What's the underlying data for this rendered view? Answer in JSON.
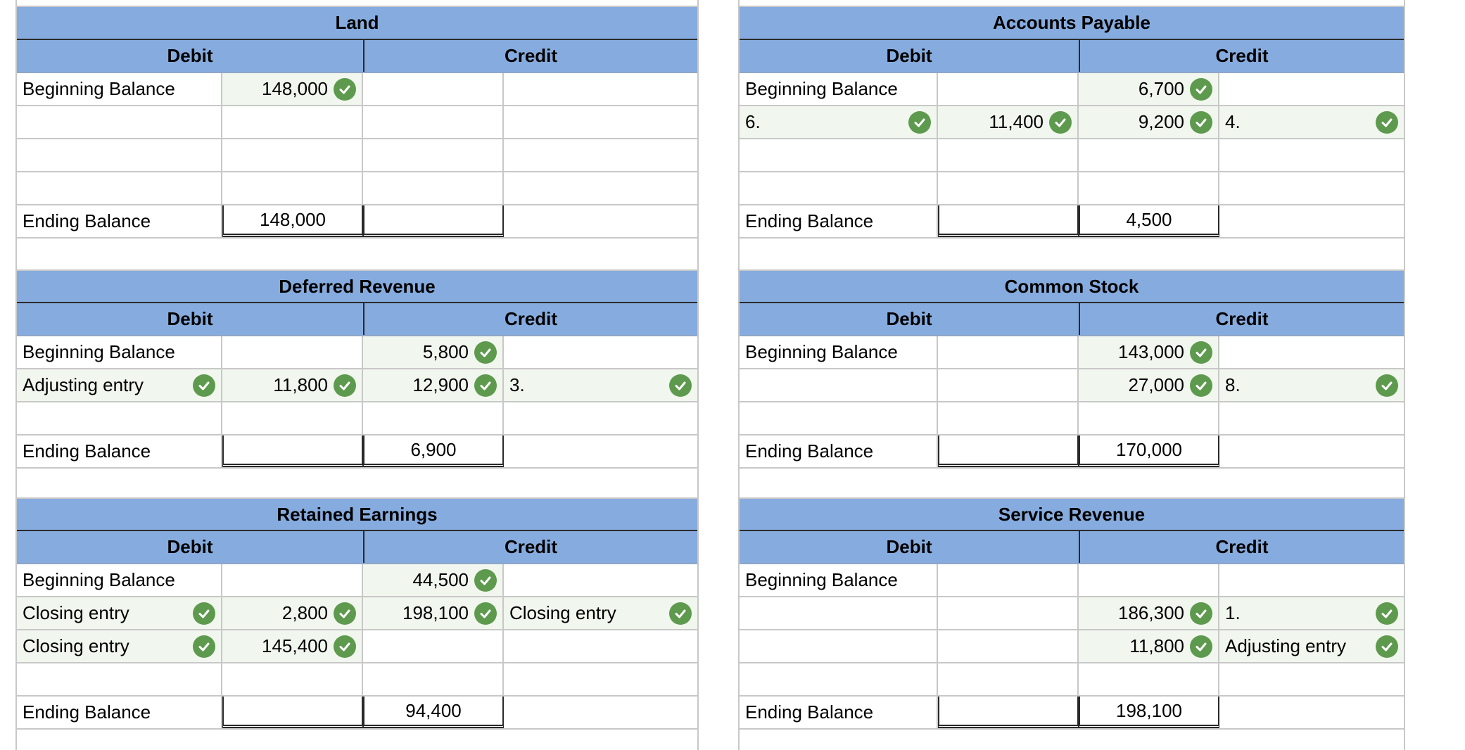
{
  "labels": {
    "debit": "Debit",
    "credit": "Credit",
    "beginning_balance": "Beginning Balance",
    "ending_balance": "Ending Balance"
  },
  "land": {
    "title": "Land",
    "beginning_debit": "148,000",
    "ending_debit": "148,000"
  },
  "accounts_payable": {
    "title": "Accounts Payable",
    "beginning_credit": "6,700",
    "row2_debit_label": "6.",
    "row2_debit": "11,400",
    "row2_credit": "9,200",
    "row2_credit_label": "4.",
    "ending_credit": "4,500"
  },
  "deferred_revenue": {
    "title": "Deferred Revenue",
    "beginning_credit": "5,800",
    "row2_debit_label": "Adjusting entry",
    "row2_debit": "11,800",
    "row2_credit": "12,900",
    "row2_credit_label": "3.",
    "ending_credit": "6,900"
  },
  "common_stock": {
    "title": "Common Stock",
    "beginning_credit": "143,000",
    "row2_credit": "27,000",
    "row2_credit_label": "8.",
    "ending_credit": "170,000"
  },
  "retained_earnings": {
    "title": "Retained Earnings",
    "beginning_credit": "44,500",
    "row2_debit_label": "Closing entry",
    "row2_debit": "2,800",
    "row2_credit": "198,100",
    "row2_credit_label": "Closing entry",
    "row3_debit_label": "Closing entry",
    "row3_debit": "145,400",
    "ending_credit": "94,400"
  },
  "service_revenue": {
    "title": "Service Revenue",
    "row2_credit": "186,300",
    "row2_credit_label": "1.",
    "row3_credit": "11,800",
    "row3_credit_label": "Adjusting entry",
    "ending_credit": "198,100"
  },
  "icons": {
    "check": "check-circle-icon",
    "check_color": "#5e9a4e",
    "header_color": "#86acdf"
  }
}
